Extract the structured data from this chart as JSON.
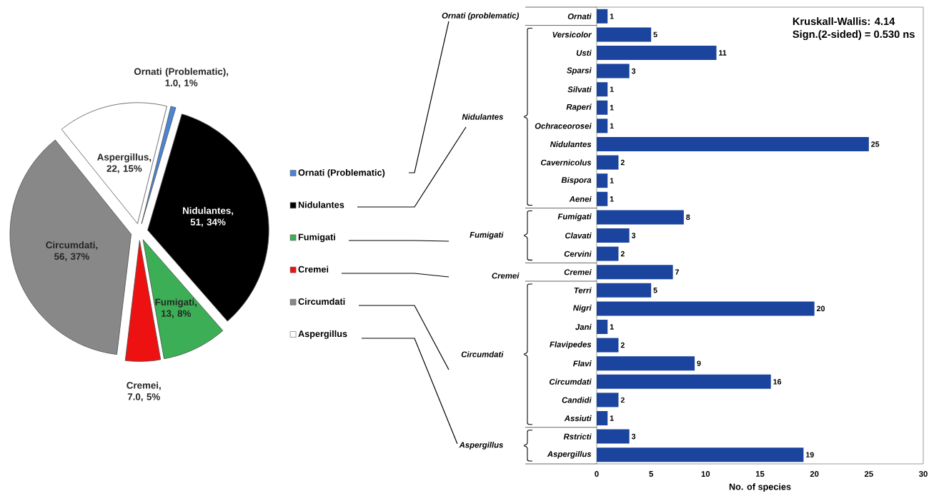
{
  "chart_data": [
    {
      "type": "pie",
      "categories": [
        "Ornati (Problematic)",
        "Nidulantes",
        "Fumigati",
        "Cremei",
        "Circumdati",
        "Aspergillus"
      ],
      "values": [
        1.0,
        51,
        13,
        7.0,
        56,
        22
      ],
      "colors": [
        "#4a86d8",
        "#000000",
        "#3cae55",
        "#ee1111",
        "#888888",
        "#ffffff"
      ],
      "value_labels": [
        "Ornati (Problematic), 1.0, 1%",
        "Nidulantes, 51, 34%",
        "Fumigati, 13, 8%",
        "Cremei, 7.0, 5%",
        "Circumdati, 56, 37%",
        "Aspergillus, 22, 15%"
      ],
      "legend": "right"
    },
    {
      "type": "bar",
      "orientation": "horizontal",
      "categories": [
        "Ornati",
        "Versicolor",
        "Usti",
        "Sparsi",
        "Silvati",
        "Raperi",
        "Ochraceorosei",
        "Nidulantes",
        "Cavernicolus",
        "Bispora",
        "Aenei",
        "Fumigati",
        "Clavati",
        "Cervini",
        "Cremei",
        "Terri",
        "Nigri",
        "Jani",
        "Flavipedes",
        "Flavi",
        "Circumdati",
        "Candidi",
        "Assiuti",
        "Rstricti",
        "Aspergillus"
      ],
      "values": [
        1,
        5,
        11,
        3,
        1,
        1,
        1,
        25,
        2,
        1,
        1,
        8,
        3,
        2,
        7,
        5,
        20,
        1,
        2,
        9,
        16,
        2,
        1,
        3,
        19
      ],
      "color": "#1a449e",
      "xlim": [
        0,
        30
      ],
      "xticks": [
        0,
        5,
        10,
        15,
        20,
        25,
        30
      ],
      "xlabel": "No. of species",
      "data_labels": true,
      "annotations": [
        "Kruskall-Wallis: 4.14",
        "Sign.(2-sided) = 0.530 ns",
        "Ornati (problematic)",
        "Nidulantes",
        "Fumigati",
        "Cremei",
        "Circumdati",
        "Aspergillus"
      ]
    }
  ]
}
